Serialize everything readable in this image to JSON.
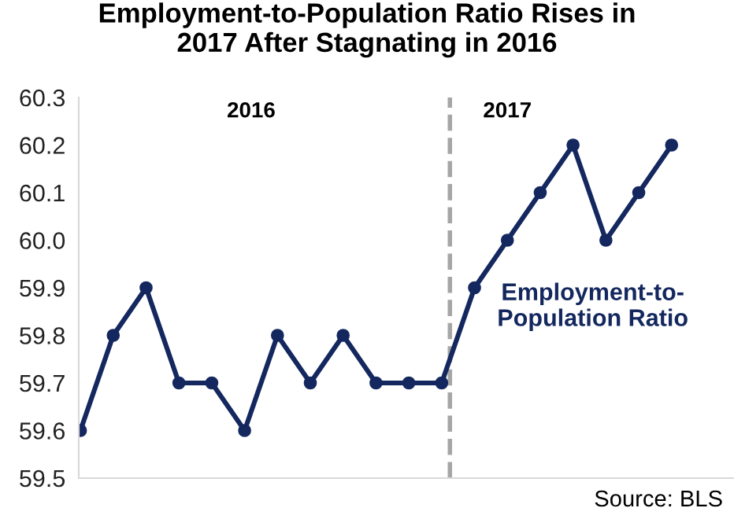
{
  "chart_data": {
    "type": "line",
    "title": "Employment-to-Population Ratio Rises in\n2017 After Stagnating in 2016",
    "categories": [
      null,
      null,
      null,
      null,
      null,
      null,
      null,
      null,
      null,
      null,
      null,
      null,
      null,
      null,
      null,
      null,
      null,
      null,
      null
    ],
    "series": [
      {
        "name": "Employment-to-\nPopulation Ratio",
        "color": "#14285f",
        "values": [
          59.6,
          59.8,
          59.9,
          59.7,
          59.7,
          59.6,
          59.8,
          59.7,
          59.8,
          59.7,
          59.7,
          59.7,
          59.9,
          60.0,
          60.1,
          60.2,
          60.0,
          60.1,
          60.2
        ]
      }
    ],
    "ylim": [
      59.5,
      60.3
    ],
    "yticks": [
      59.5,
      59.6,
      59.7,
      59.8,
      59.9,
      {
        "value": 60.0,
        "label": "60.0"
      },
      60.1,
      60.2,
      60.3
    ],
    "annotations": [
      "2016",
      "2017",
      "Source: BLS"
    ],
    "marker": "circle",
    "line_style": "solid",
    "grid": false,
    "legend": false
  }
}
